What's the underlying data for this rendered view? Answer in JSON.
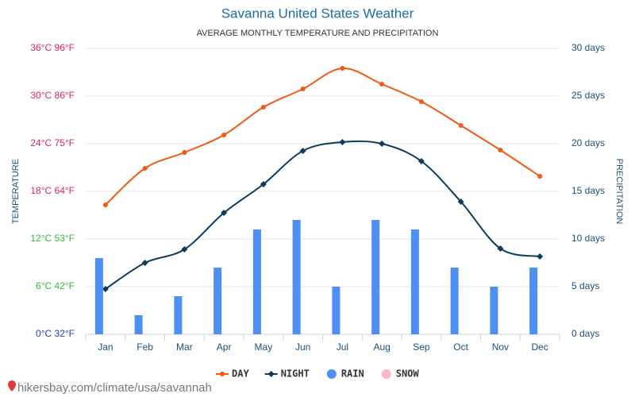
{
  "chart_data": {
    "type": "combo",
    "title": "Savanna United States Weather",
    "subtitle": "AVERAGE MONTHLY TEMPERATURE AND PRECIPITATION",
    "y_label": "TEMPERATURE",
    "y2_label": "PRECIPITATION",
    "source": "hikersbay.com/climate/usa/savannah",
    "categories": [
      "Jan",
      "Feb",
      "Mar",
      "Apr",
      "May",
      "Jun",
      "Jul",
      "Aug",
      "Sep",
      "Oct",
      "Nov",
      "Dec"
    ],
    "ylim": [
      0,
      36
    ],
    "yticks": [
      {
        "value": 0,
        "label": "0°C 32°F"
      },
      {
        "value": 6,
        "label": "6°C 42°F"
      },
      {
        "value": 12,
        "label": "12°C 53°F"
      },
      {
        "value": 18,
        "label": "18°C 64°F"
      },
      {
        "value": 24,
        "label": "24°C 75°F"
      },
      {
        "value": 30,
        "label": "30°C 86°F"
      },
      {
        "value": 36,
        "label": "36°C 96°F"
      }
    ],
    "ytick_colors": [
      "#1a3fc2",
      "#3ab53a",
      "#3ab53a",
      "#e0245e",
      "#e0245e",
      "#e0245e",
      "#e0245e"
    ],
    "y2lim": [
      0,
      30
    ],
    "y2ticks": [
      {
        "value": 0,
        "label": "0 days"
      },
      {
        "value": 5,
        "label": "5 days"
      },
      {
        "value": 10,
        "label": "10 days"
      },
      {
        "value": 15,
        "label": "15 days"
      },
      {
        "value": 20,
        "label": "20 days"
      },
      {
        "value": 25,
        "label": "25 days"
      },
      {
        "value": 30,
        "label": "30 days"
      }
    ],
    "grid": true,
    "legend": "bottom",
    "series": [
      {
        "name": "DAY",
        "type": "line",
        "color": "#f05a14",
        "values": [
          16.3,
          20.9,
          22.9,
          25.1,
          28.6,
          30.9,
          33.5,
          31.5,
          29.3,
          26.3,
          23.2,
          19.9
        ]
      },
      {
        "name": "NIGHT",
        "type": "line",
        "color": "#0d3b5a",
        "values": [
          5.7,
          9.0,
          10.7,
          15.3,
          18.9,
          23.1,
          24.2,
          24.0,
          21.8,
          16.7,
          10.8,
          9.8
        ]
      },
      {
        "name": "RAIN",
        "type": "bar",
        "axis": "y2",
        "color": "#4d8ff5",
        "values": [
          8,
          2,
          4,
          7,
          11,
          12,
          5,
          12,
          11,
          7,
          5,
          7
        ]
      },
      {
        "name": "SNOW",
        "type": "bar",
        "axis": "y2",
        "color": "#ffb6c6",
        "values": [
          0,
          0,
          0,
          0,
          0,
          0,
          0,
          0,
          0,
          0,
          0,
          0
        ]
      }
    ]
  }
}
